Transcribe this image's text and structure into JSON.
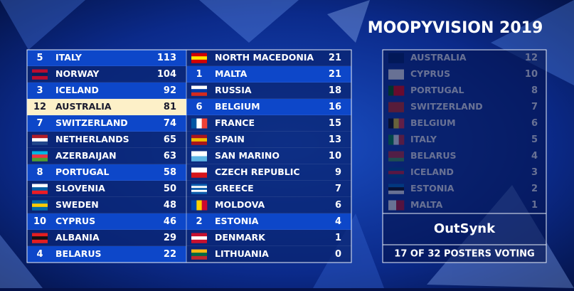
{
  "title": "MOOPYVISION 2019",
  "scoreboard": {
    "rows": [
      {
        "points": 5,
        "country": "ITALY",
        "total": 113
      },
      {
        "points": null,
        "country": "NORWAY",
        "total": 104
      },
      {
        "points": 3,
        "country": "ICELAND",
        "total": 92
      },
      {
        "points": 12,
        "country": "AUSTRALIA",
        "total": 81
      },
      {
        "points": 7,
        "country": "SWITZERLAND",
        "total": 74
      },
      {
        "points": null,
        "country": "NETHERLANDS",
        "total": 65
      },
      {
        "points": null,
        "country": "AZERBAIJAN",
        "total": 63
      },
      {
        "points": 8,
        "country": "PORTUGAL",
        "total": 58
      },
      {
        "points": null,
        "country": "SLOVENIA",
        "total": 50
      },
      {
        "points": null,
        "country": "SWEDEN",
        "total": 48
      },
      {
        "points": 10,
        "country": "CYPRUS",
        "total": 46
      },
      {
        "points": null,
        "country": "ALBANIA",
        "total": 29
      },
      {
        "points": 4,
        "country": "BELARUS",
        "total": 22
      },
      {
        "points": null,
        "country": "NORTH MACEDONIA",
        "total": 21
      },
      {
        "points": 1,
        "country": "MALTA",
        "total": 21
      },
      {
        "points": null,
        "country": "RUSSIA",
        "total": 18
      },
      {
        "points": 6,
        "country": "BELGIUM",
        "total": 16
      },
      {
        "points": null,
        "country": "FRANCE",
        "total": 15
      },
      {
        "points": null,
        "country": "SPAIN",
        "total": 13
      },
      {
        "points": null,
        "country": "SAN MARINO",
        "total": 10
      },
      {
        "points": null,
        "country": "CZECH REPUBLIC",
        "total": 9
      },
      {
        "points": null,
        "country": "GREECE",
        "total": 7
      },
      {
        "points": null,
        "country": "MOLDOVA",
        "total": 6
      },
      {
        "points": 2,
        "country": "ESTONIA",
        "total": 4
      },
      {
        "points": null,
        "country": "DENMARK",
        "total": 1
      },
      {
        "points": null,
        "country": "LITHUANIA",
        "total": 0
      }
    ]
  },
  "votes": {
    "rows": [
      {
        "country": "AUSTRALIA",
        "points": 12
      },
      {
        "country": "CYPRUS",
        "points": 10
      },
      {
        "country": "PORTUGAL",
        "points": 8
      },
      {
        "country": "SWITZERLAND",
        "points": 7
      },
      {
        "country": "BELGIUM",
        "points": 6
      },
      {
        "country": "ITALY",
        "points": 5
      },
      {
        "country": "BELARUS",
        "points": 4
      },
      {
        "country": "ICELAND",
        "points": 3
      },
      {
        "country": "ESTONIA",
        "points": 2
      },
      {
        "country": "MALTA",
        "points": 1
      }
    ]
  },
  "voter": "OutSynk",
  "footer": "17 OF 32 POSTERS VOTING"
}
